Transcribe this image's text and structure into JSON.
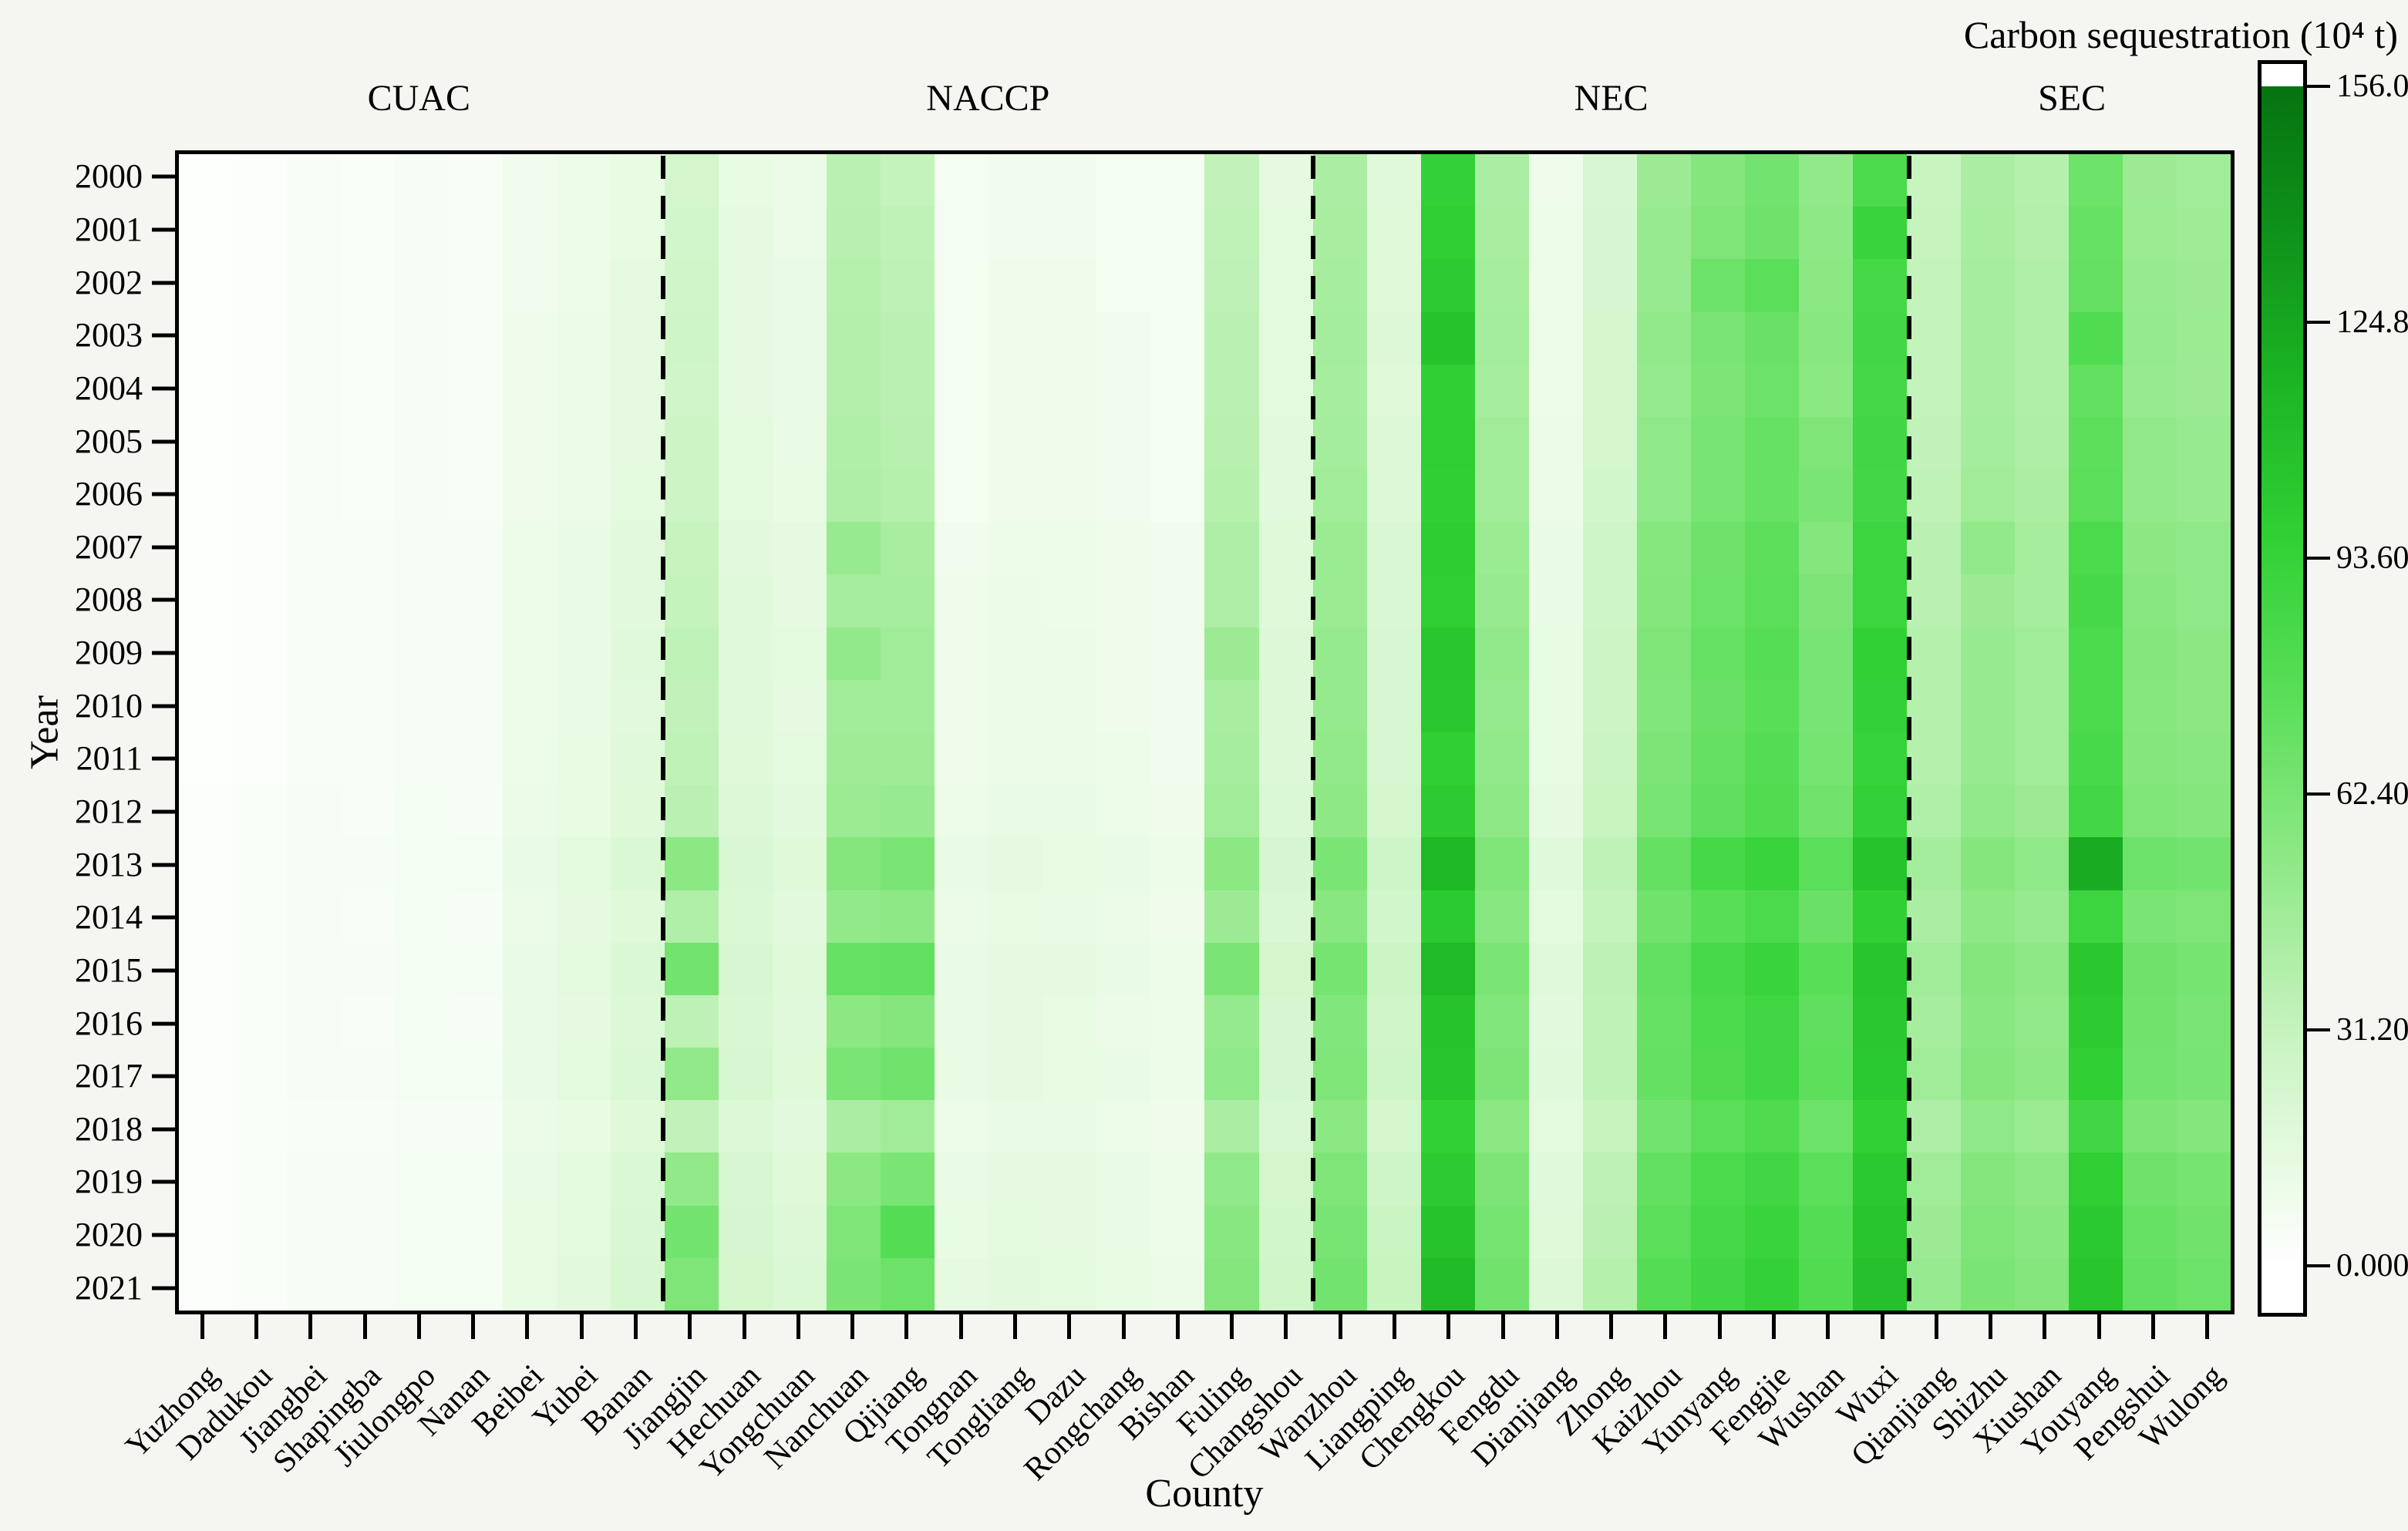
{
  "figure": {
    "colorbar_title": "Carbon sequestration (10⁴ t)",
    "x_axis_title": "County",
    "y_axis_title": "Year"
  },
  "chart_data": {
    "type": "heatmap",
    "title": "Carbon sequestration (10⁴ t)",
    "xlabel": "County",
    "ylabel": "Year",
    "legend_position": "right-colorbar",
    "grid": false,
    "years": [
      "2000",
      "2001",
      "2002",
      "2003",
      "2004",
      "2005",
      "2006",
      "2007",
      "2008",
      "2009",
      "2010",
      "2011",
      "2012",
      "2013",
      "2014",
      "2015",
      "2016",
      "2017",
      "2018",
      "2019",
      "2020",
      "2021"
    ],
    "counties": [
      "Yuzhong",
      "Dadukou",
      "Jiangbei",
      "Shapingba",
      "Jiulongpo",
      "Nanan",
      "Beibei",
      "Yubei",
      "Banan",
      "Jiangjin",
      "Hechuan",
      "Yongchuan",
      "Nanchuan",
      "Qijiang",
      "Tongnan",
      "Tongliang",
      "Dazu",
      "Rongchang",
      "Bishan",
      "Fuling",
      "Changshou",
      "Wanzhou",
      "Liangping",
      "Chengkou",
      "Fengdu",
      "Dianjiang",
      "Zhong",
      "Kaizhou",
      "Yunyang",
      "Fengjie",
      "Wushan",
      "Wuxi",
      "Qianjiang",
      "Shizhu",
      "Xiushan",
      "Youyang",
      "Pengshui",
      "Wulong"
    ],
    "groups": [
      {
        "label": "CUAC",
        "start": 0,
        "end": 9
      },
      {
        "label": "NACCP",
        "start": 9,
        "end": 21
      },
      {
        "label": "NEC",
        "start": 21,
        "end": 32
      },
      {
        "label": "SEC",
        "start": 32,
        "end": 38
      }
    ],
    "separator_style": "dashed",
    "colorbar": {
      "title": "Carbon sequestration (10⁴ t)",
      "vmin": 0,
      "vmax": 156,
      "ticks": [
        "156.0",
        "124.8",
        "93.60",
        "62.40",
        "31.20",
        "0.000"
      ],
      "tick_values": [
        156.0,
        124.8,
        93.6,
        62.4,
        31.2,
        0.0
      ]
    },
    "colormap_stops": [
      [
        0.0,
        "#ffffff"
      ],
      [
        0.08,
        "#e9fbe4"
      ],
      [
        0.2,
        "#c6f3be"
      ],
      [
        0.35,
        "#8ce884"
      ],
      [
        0.5,
        "#54dd54"
      ],
      [
        0.62,
        "#30d034"
      ],
      [
        0.75,
        "#1cb424"
      ],
      [
        0.88,
        "#0e911a"
      ],
      [
        1.0,
        "#067310"
      ]
    ],
    "values": [
      [
        1,
        2,
        4,
        3,
        5,
        4,
        8,
        10,
        13,
        24,
        13,
        11,
        36,
        32,
        6,
        8,
        8,
        7,
        6,
        33,
        14,
        42,
        17,
        95,
        42,
        9,
        22,
        48,
        58,
        65,
        52,
        82,
        30,
        42,
        38,
        68,
        48,
        46
      ],
      [
        1,
        2,
        4,
        3,
        5,
        4,
        8,
        10,
        13,
        25,
        14,
        11,
        37,
        34,
        6,
        8,
        8,
        7,
        6,
        34,
        15,
        43,
        18,
        98,
        43,
        10,
        23,
        50,
        60,
        67,
        54,
        92,
        31,
        43,
        39,
        70,
        49,
        47
      ],
      [
        1,
        2,
        4,
        3,
        5,
        4,
        8,
        10,
        14,
        26,
        14,
        12,
        38,
        35,
        7,
        9,
        9,
        7,
        6,
        35,
        15,
        44,
        18,
        100,
        44,
        10,
        23,
        50,
        68,
        75,
        55,
        85,
        32,
        44,
        40,
        71,
        50,
        48
      ],
      [
        1,
        2,
        4,
        3,
        5,
        4,
        9,
        11,
        14,
        27,
        14,
        12,
        39,
        36,
        7,
        9,
        9,
        8,
        7,
        36,
        15,
        45,
        19,
        106,
        45,
        10,
        24,
        52,
        62,
        69,
        56,
        87,
        32,
        44,
        40,
        80,
        51,
        49
      ],
      [
        1,
        2,
        4,
        3,
        5,
        4,
        9,
        11,
        14,
        26,
        14,
        12,
        39,
        36,
        7,
        9,
        9,
        8,
        7,
        36,
        15,
        44,
        18,
        97,
        44,
        10,
        24,
        51,
        61,
        68,
        55,
        86,
        32,
        44,
        40,
        72,
        50,
        48
      ],
      [
        1,
        2,
        4,
        3,
        5,
        4,
        9,
        11,
        14,
        28,
        15,
        12,
        40,
        37,
        7,
        9,
        9,
        8,
        7,
        37,
        16,
        45,
        19,
        98,
        46,
        11,
        24,
        53,
        63,
        70,
        60,
        88,
        33,
        45,
        41,
        74,
        52,
        50
      ],
      [
        1,
        2,
        4,
        3,
        5,
        4,
        9,
        11,
        15,
        28,
        15,
        13,
        41,
        38,
        7,
        9,
        9,
        8,
        7,
        38,
        16,
        46,
        19,
        97,
        46,
        11,
        25,
        53,
        63,
        70,
        62,
        87,
        34,
        46,
        42,
        75,
        52,
        50
      ],
      [
        1,
        2,
        4,
        4,
        5,
        5,
        10,
        12,
        16,
        31,
        16,
        14,
        50,
        43,
        8,
        10,
        10,
        9,
        8,
        41,
        18,
        49,
        21,
        99,
        49,
        12,
        27,
        57,
        67,
        74,
        58,
        90,
        36,
        52,
        44,
        82,
        55,
        53
      ],
      [
        1,
        2,
        4,
        4,
        5,
        5,
        10,
        12,
        16,
        32,
        17,
        14,
        44,
        44,
        9,
        11,
        10,
        9,
        8,
        41,
        18,
        49,
        21,
        98,
        50,
        12,
        27,
        58,
        68,
        75,
        61,
        90,
        36,
        48,
        44,
        85,
        56,
        53
      ],
      [
        1,
        2,
        4,
        4,
        5,
        5,
        10,
        12,
        17,
        34,
        17,
        15,
        52,
        46,
        9,
        11,
        11,
        9,
        8,
        48,
        19,
        51,
        22,
        104,
        52,
        13,
        28,
        60,
        70,
        77,
        63,
        96,
        38,
        50,
        46,
        83,
        58,
        55
      ],
      [
        1,
        2,
        4,
        4,
        5,
        5,
        10,
        12,
        16,
        33,
        17,
        14,
        46,
        46,
        9,
        11,
        11,
        9,
        8,
        43,
        19,
        51,
        22,
        103,
        51,
        13,
        28,
        59,
        69,
        76,
        63,
        95,
        38,
        50,
        46,
        82,
        57,
        55
      ],
      [
        1,
        2,
        4,
        4,
        5,
        5,
        10,
        13,
        17,
        34,
        18,
        15,
        47,
        47,
        9,
        11,
        11,
        10,
        8,
        44,
        19,
        52,
        22,
        97,
        52,
        13,
        29,
        61,
        71,
        78,
        64,
        93,
        38,
        50,
        46,
        84,
        58,
        56
      ],
      [
        2,
        3,
        5,
        4,
        6,
        5,
        11,
        13,
        18,
        36,
        19,
        16,
        49,
        50,
        10,
        12,
        12,
        10,
        9,
        46,
        20,
        54,
        24,
        100,
        54,
        14,
        30,
        63,
        73,
        80,
        66,
        95,
        40,
        52,
        48,
        87,
        60,
        58
      ],
      [
        2,
        3,
        5,
        5,
        6,
        6,
        12,
        15,
        20,
        55,
        21,
        18,
        58,
        62,
        12,
        14,
        13,
        12,
        10,
        55,
        23,
        62,
        27,
        114,
        60,
        17,
        34,
        71,
        85,
        92,
        75,
        106,
        45,
        58,
        53,
        122,
        68,
        65
      ],
      [
        2,
        3,
        5,
        4,
        6,
        5,
        11,
        14,
        18,
        40,
        20,
        16,
        52,
        54,
        11,
        13,
        12,
        11,
        9,
        48,
        21,
        56,
        25,
        101,
        56,
        15,
        32,
        66,
        76,
        82,
        69,
        97,
        42,
        54,
        50,
        90,
        62,
        60
      ],
      [
        2,
        3,
        5,
        5,
        6,
        6,
        12,
        15,
        20,
        65,
        22,
        18,
        70,
        72,
        12,
        14,
        14,
        12,
        10,
        62,
        24,
        64,
        28,
        113,
        62,
        17,
        35,
        72,
        84,
        92,
        76,
        105,
        46,
        58,
        54,
        103,
        67,
        64
      ],
      [
        2,
        3,
        5,
        4,
        6,
        5,
        12,
        14,
        19,
        35,
        21,
        17,
        55,
        58,
        12,
        14,
        13,
        11,
        10,
        51,
        23,
        59,
        26,
        106,
        59,
        16,
        34,
        70,
        82,
        88,
        73,
        103,
        44,
        56,
        52,
        100,
        66,
        62
      ],
      [
        2,
        3,
        5,
        5,
        6,
        6,
        12,
        15,
        20,
        52,
        22,
        18,
        62,
        66,
        12,
        14,
        13,
        12,
        10,
        53,
        23,
        60,
        27,
        105,
        61,
        17,
        34,
        71,
        81,
        88,
        74,
        102,
        46,
        58,
        54,
        97,
        65,
        63
      ],
      [
        2,
        3,
        4,
        4,
        5,
        5,
        11,
        13,
        18,
        33,
        19,
        16,
        42,
        46,
        10,
        12,
        12,
        10,
        9,
        42,
        21,
        55,
        24,
        96,
        55,
        15,
        31,
        65,
        75,
        81,
        68,
        96,
        41,
        53,
        49,
        88,
        61,
        58
      ],
      [
        2,
        3,
        5,
        5,
        6,
        6,
        12,
        15,
        20,
        52,
        22,
        18,
        55,
        62,
        12,
        14,
        14,
        12,
        10,
        53,
        24,
        60,
        27,
        100,
        61,
        17,
        35,
        72,
        82,
        88,
        75,
        102,
        46,
        58,
        54,
        98,
        67,
        64
      ],
      [
        2,
        3,
        5,
        5,
        6,
        6,
        13,
        15,
        21,
        65,
        23,
        19,
        60,
        78,
        13,
        15,
        14,
        12,
        10,
        56,
        25,
        63,
        29,
        106,
        64,
        18,
        36,
        75,
        85,
        92,
        78,
        105,
        48,
        60,
        56,
        102,
        70,
        66
      ],
      [
        2,
        3,
        5,
        5,
        6,
        6,
        13,
        16,
        22,
        60,
        24,
        20,
        62,
        68,
        14,
        16,
        15,
        13,
        11,
        58,
        26,
        65,
        30,
        112,
        66,
        19,
        38,
        78,
        88,
        95,
        80,
        108,
        50,
        62,
        58,
        105,
        72,
        68
      ]
    ]
  }
}
